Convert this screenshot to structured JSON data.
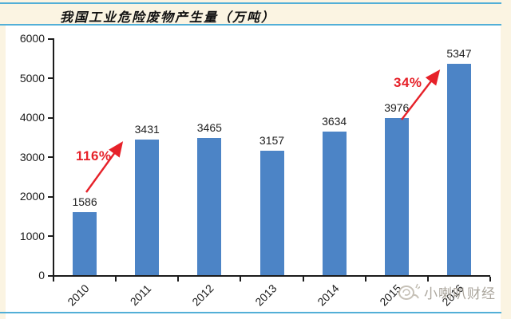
{
  "title": "我国工业危险废物产生量（万吨）",
  "watermark": {
    "text": "小喇叭财经",
    "logo_icon": "snail-logo-icon"
  },
  "colors": {
    "bar": "#4C84C6",
    "accent_red": "#E62129",
    "divider_blue": "#52AFD7",
    "background_cream": "#FBF4E2",
    "axis_black": "#1C1C1C",
    "watermark_gray": "#ABA69D"
  },
  "chart_data": {
    "type": "bar",
    "title": "我国工业危险废物产生量（万吨）",
    "categories": [
      "2010",
      "2011",
      "2012",
      "2013",
      "2014",
      "2015",
      "2016"
    ],
    "values": [
      1586,
      3431,
      3465,
      3157,
      3634,
      3976,
      5347
    ],
    "xlabel": "",
    "ylabel": "",
    "ylim": [
      0,
      6000
    ],
    "yticks": [
      0,
      1000,
      2000,
      3000,
      4000,
      5000,
      6000
    ],
    "grid": false,
    "legend": null,
    "annotations": [
      {
        "label": "116%",
        "from_category": "2010",
        "to_category": "2011"
      },
      {
        "label": "34%",
        "from_category": "2015",
        "to_category": "2016"
      }
    ]
  }
}
